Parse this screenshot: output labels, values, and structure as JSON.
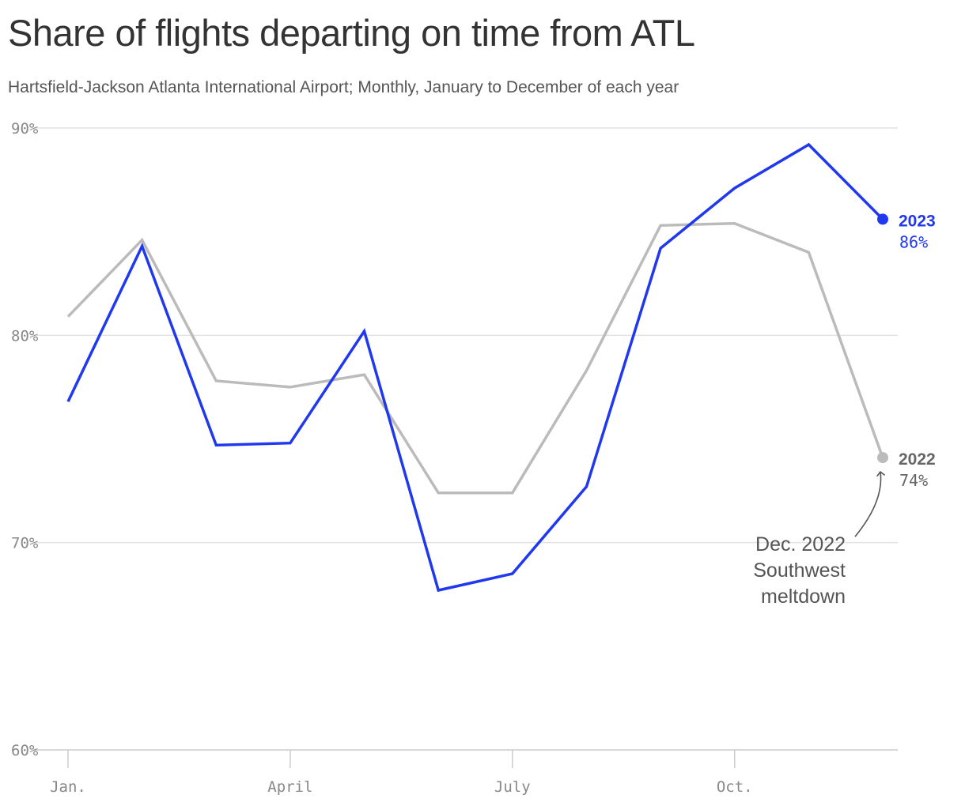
{
  "chart_data": {
    "type": "line",
    "title": "Share of flights departing on time from ATL",
    "subtitle": "Hartsfield-Jackson Atlanta International Airport; Monthly, January to December of each year",
    "x": [
      1,
      2,
      3,
      4,
      5,
      6,
      7,
      8,
      9,
      10,
      11,
      12
    ],
    "x_ticks": [
      {
        "month": 1,
        "label": "Jan."
      },
      {
        "month": 4,
        "label": "April"
      },
      {
        "month": 7,
        "label": "July"
      },
      {
        "month": 10,
        "label": "Oct."
      }
    ],
    "ylim": [
      60,
      90
    ],
    "y_ticks": [
      {
        "value": 90,
        "label": "90%"
      },
      {
        "value": 80,
        "label": "80%"
      },
      {
        "value": 70,
        "label": "70%"
      },
      {
        "value": 60,
        "label": "60%"
      }
    ],
    "grid": true,
    "series": [
      {
        "name": "2022",
        "color": "#bbbbbb",
        "label_color": "#666666",
        "end_label": "74%",
        "values": [
          80.9,
          84.6,
          77.8,
          77.5,
          78.1,
          72.4,
          72.4,
          78.3,
          85.3,
          85.4,
          84.0,
          74.1
        ]
      },
      {
        "name": "2023",
        "color": "#2038ee",
        "label_color": "#2038ee",
        "end_label": "86%",
        "values": [
          76.8,
          84.3,
          74.7,
          74.8,
          80.2,
          67.7,
          68.5,
          72.7,
          84.2,
          87.1,
          89.2,
          85.6
        ]
      }
    ],
    "annotation": {
      "lines": [
        "Dec. 2022",
        "Southwest",
        "meltdown"
      ],
      "target_series": "2022",
      "target_month": 12
    }
  }
}
